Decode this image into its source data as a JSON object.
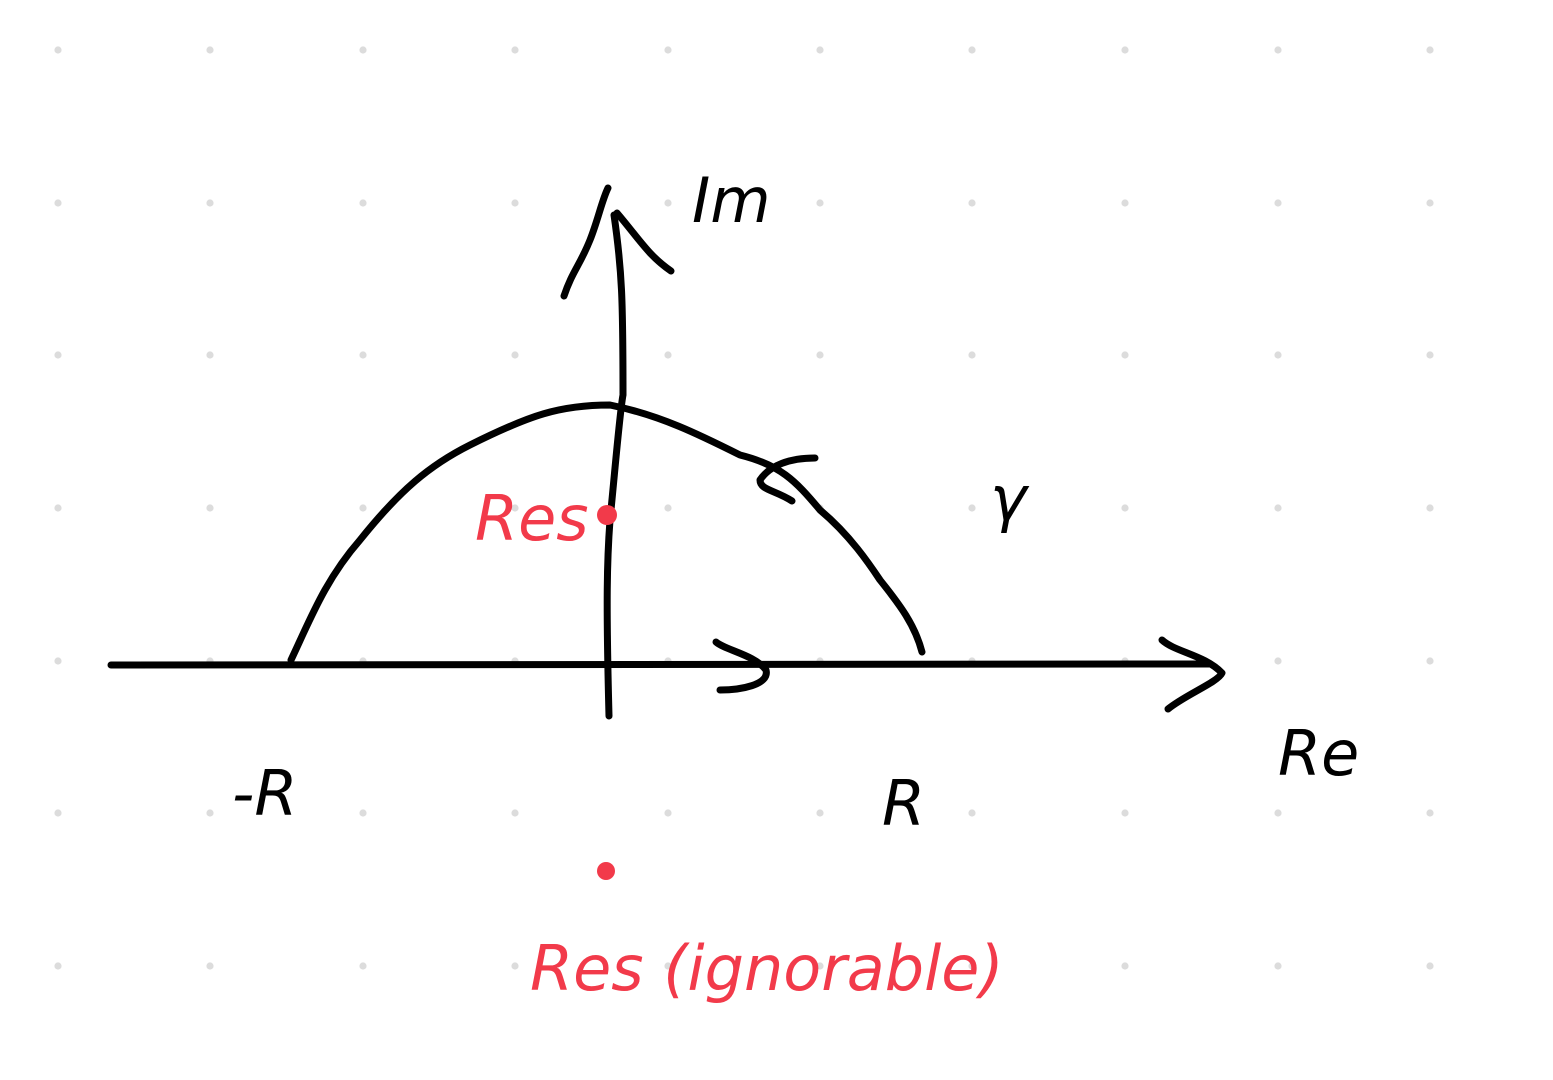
{
  "labels": {
    "imaginary_axis": "Im",
    "real_axis": "Re",
    "left_endpoint": "-R",
    "right_endpoint": "R",
    "contour_name": "γ",
    "upper_residue": "Res",
    "lower_residue": "Res (ignorable)"
  },
  "colors": {
    "ink": "#000000",
    "accent": "#f23a4a",
    "grid_dot": "#dcdcdc",
    "background": "#ffffff"
  }
}
